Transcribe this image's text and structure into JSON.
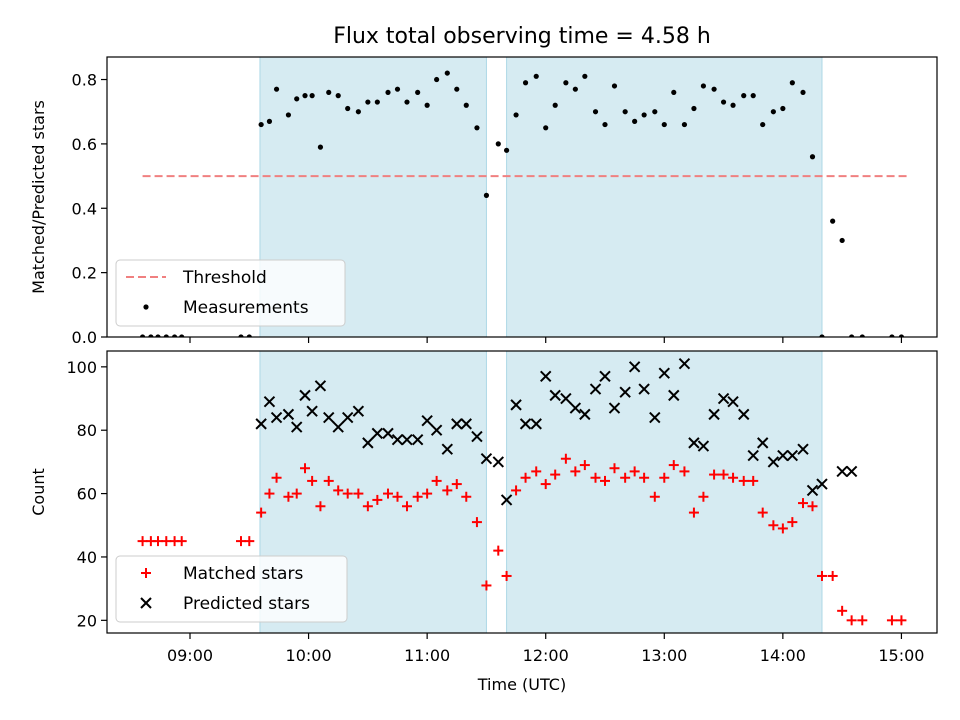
{
  "chart_data": {
    "title": "Flux total observing time = 4.58 h",
    "xlabel": "Time (UTC)",
    "x_ticks": [
      "09:00",
      "10:00",
      "11:00",
      "12:00",
      "13:00",
      "14:00",
      "15:00"
    ],
    "x_range_hours": [
      8.3,
      15.3
    ],
    "shaded_intervals_hours": [
      [
        9.59,
        11.5
      ],
      [
        11.67,
        14.33
      ]
    ],
    "colors": {
      "shade": "#add8e6",
      "threshold": "#f08080",
      "matched": "#ff0000",
      "predicted": "#000000",
      "measurements": "#000000"
    },
    "panels": [
      {
        "type": "scatter",
        "ylabel": "Matched/Predicted stars",
        "ylim": [
          0,
          0.87
        ],
        "y_ticks": [
          "0.0",
          "0.2",
          "0.4",
          "0.6",
          "0.8"
        ],
        "legend": {
          "placement": "lower-left",
          "entries": [
            "Threshold",
            "Measurements"
          ]
        },
        "threshold": {
          "name": "Threshold",
          "value": 0.5,
          "x_range": [
            8.6,
            15.05
          ]
        },
        "series": [
          {
            "name": "Measurements",
            "x": [
              8.6,
              8.67,
              8.73,
              8.8,
              8.87,
              8.93,
              9.43,
              9.5,
              9.6,
              9.67,
              9.73,
              9.83,
              9.9,
              9.97,
              10.03,
              10.1,
              10.17,
              10.25,
              10.33,
              10.42,
              10.5,
              10.58,
              10.67,
              10.75,
              10.83,
              10.92,
              11.0,
              11.08,
              11.17,
              11.25,
              11.33,
              11.42,
              11.5,
              11.6,
              11.67,
              11.75,
              11.83,
              11.92,
              12.0,
              12.08,
              12.17,
              12.25,
              12.33,
              12.42,
              12.5,
              12.58,
              12.67,
              12.75,
              12.83,
              12.92,
              13.0,
              13.08,
              13.17,
              13.25,
              13.33,
              13.42,
              13.5,
              13.58,
              13.67,
              13.75,
              13.83,
              13.92,
              14.0,
              14.08,
              14.17,
              14.25,
              14.33,
              14.42,
              14.5,
              14.58,
              14.67,
              14.92,
              15.0
            ],
            "y": [
              0,
              0,
              0,
              0,
              0,
              0,
              0,
              0,
              0.66,
              0.67,
              0.77,
              0.69,
              0.74,
              0.75,
              0.75,
              0.59,
              0.76,
              0.75,
              0.71,
              0.7,
              0.73,
              0.73,
              0.76,
              0.77,
              0.73,
              0.76,
              0.72,
              0.8,
              0.82,
              0.77,
              0.72,
              0.65,
              0.44,
              0.6,
              0.58,
              0.69,
              0.79,
              0.81,
              0.65,
              0.72,
              0.79,
              0.77,
              0.81,
              0.7,
              0.66,
              0.78,
              0.7,
              0.67,
              0.69,
              0.7,
              0.66,
              0.76,
              0.66,
              0.71,
              0.78,
              0.77,
              0.73,
              0.72,
              0.75,
              0.75,
              0.66,
              0.7,
              0.71,
              0.79,
              0.76,
              0.56,
              0,
              0.36,
              0.3,
              0,
              0,
              0,
              0
            ]
          }
        ]
      },
      {
        "type": "scatter",
        "ylabel": "Count",
        "ylim": [
          16,
          105
        ],
        "y_ticks": [
          "20",
          "40",
          "60",
          "80",
          "100"
        ],
        "legend": {
          "placement": "lower-left",
          "entries": [
            "Matched stars",
            "Predicted stars"
          ]
        },
        "series": [
          {
            "name": "Matched stars",
            "x": [
              8.6,
              8.67,
              8.73,
              8.8,
              8.87,
              8.93,
              9.43,
              9.5,
              9.6,
              9.67,
              9.73,
              9.83,
              9.9,
              9.97,
              10.03,
              10.1,
              10.17,
              10.25,
              10.33,
              10.42,
              10.5,
              10.58,
              10.67,
              10.75,
              10.83,
              10.92,
              11.0,
              11.08,
              11.17,
              11.25,
              11.33,
              11.42,
              11.5,
              11.6,
              11.67,
              11.75,
              11.83,
              11.92,
              12.0,
              12.08,
              12.17,
              12.25,
              12.33,
              12.42,
              12.5,
              12.58,
              12.67,
              12.75,
              12.83,
              12.92,
              13.0,
              13.08,
              13.17,
              13.25,
              13.33,
              13.42,
              13.5,
              13.58,
              13.67,
              13.75,
              13.83,
              13.92,
              14.0,
              14.08,
              14.17,
              14.25,
              14.33,
              14.42,
              14.5,
              14.58,
              14.67,
              14.92,
              15.0
            ],
            "y": [
              45,
              45,
              45,
              45,
              45,
              45,
              45,
              45,
              54,
              60,
              65,
              59,
              60,
              68,
              64,
              56,
              64,
              61,
              60,
              60,
              56,
              58,
              60,
              59,
              56,
              59,
              60,
              64,
              61,
              63,
              59,
              51,
              31,
              42,
              34,
              61,
              65,
              67,
              63,
              66,
              71,
              67,
              69,
              65,
              64,
              68,
              65,
              67,
              65,
              59,
              65,
              69,
              67,
              54,
              59,
              66,
              66,
              65,
              64,
              64,
              54,
              50,
              49,
              51,
              57,
              56,
              34,
              34,
              23,
              20,
              20,
              20,
              20
            ]
          },
          {
            "name": "Predicted stars",
            "x": [
              9.6,
              9.67,
              9.73,
              9.83,
              9.9,
              9.97,
              10.03,
              10.1,
              10.17,
              10.25,
              10.33,
              10.42,
              10.5,
              10.58,
              10.67,
              10.75,
              10.83,
              10.92,
              11.0,
              11.08,
              11.17,
              11.25,
              11.33,
              11.42,
              11.5,
              11.6,
              11.67,
              11.75,
              11.83,
              11.92,
              12.0,
              12.08,
              12.17,
              12.25,
              12.33,
              12.42,
              12.5,
              12.58,
              12.67,
              12.75,
              12.83,
              12.92,
              13.0,
              13.08,
              13.17,
              13.25,
              13.33,
              13.42,
              13.5,
              13.58,
              13.67,
              13.75,
              13.83,
              13.92,
              14.0,
              14.08,
              14.17,
              14.25,
              14.33,
              14.5,
              14.58
            ],
            "y": [
              82,
              89,
              84,
              85,
              81,
              91,
              86,
              94,
              84,
              81,
              84,
              86,
              76,
              79,
              79,
              77,
              77,
              77,
              83,
              80,
              74,
              82,
              82,
              78,
              71,
              70,
              58,
              88,
              82,
              82,
              97,
              91,
              90,
              87,
              85,
              93,
              97,
              87,
              92,
              100,
              93,
              84,
              98,
              91,
              101,
              76,
              75,
              85,
              90,
              89,
              85,
              72,
              76,
              70,
              72,
              72,
              74,
              61,
              63,
              67,
              67
            ]
          }
        ]
      }
    ]
  }
}
